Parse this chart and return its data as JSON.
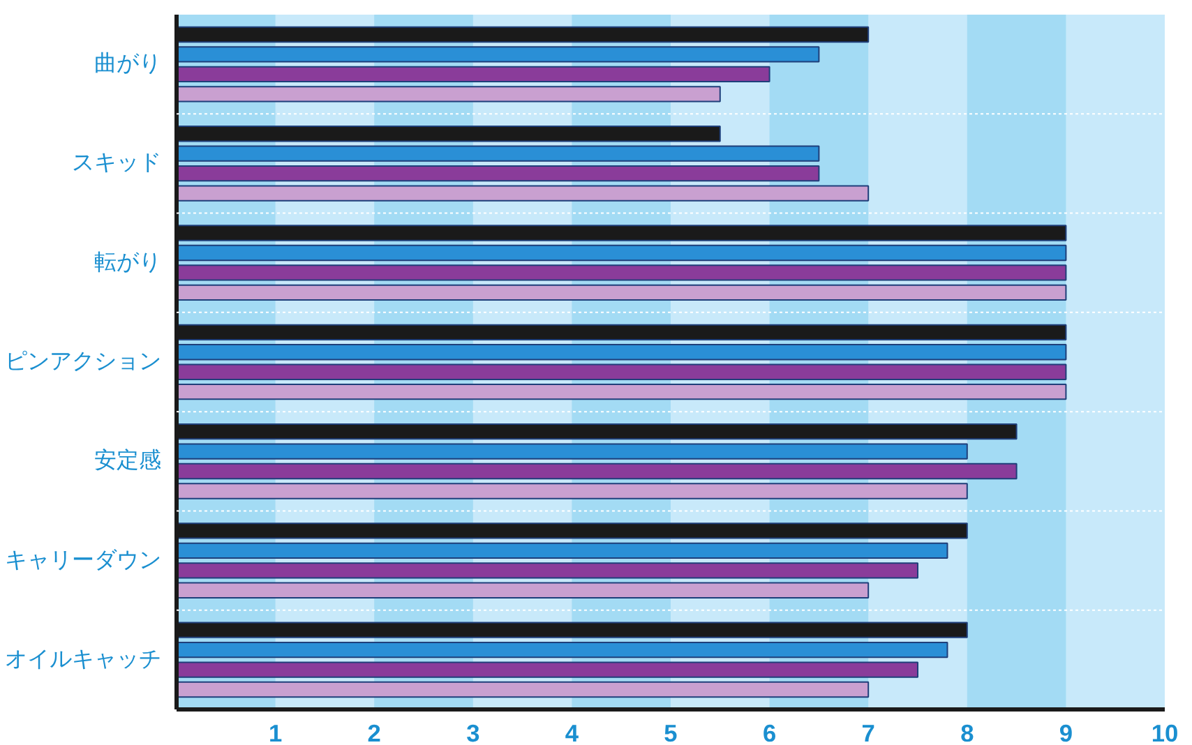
{
  "chart_data": {
    "type": "bar",
    "orientation": "horizontal",
    "categories": [
      "曲がり",
      "スキッド",
      "転がり",
      "ピンアクション",
      "安定感",
      "キャリーダウン",
      "オイルキャッチ"
    ],
    "series": [
      {
        "color": "#1a1a1a",
        "values": [
          7,
          5.5,
          9,
          9,
          8.5,
          8,
          8
        ]
      },
      {
        "color": "#2a8fd6",
        "values": [
          6.5,
          6.5,
          9,
          9,
          8,
          7.8,
          7.8
        ]
      },
      {
        "color": "#8a3c9a",
        "values": [
          6,
          6.5,
          9,
          9,
          8.5,
          7.5,
          7.5
        ]
      },
      {
        "color": "#c9a0d0",
        "values": [
          5.5,
          7,
          9,
          9,
          8,
          7,
          7
        ]
      }
    ],
    "xlim": [
      0,
      10
    ],
    "xticks": [
      1,
      2,
      3,
      4,
      5,
      6,
      7,
      8,
      9,
      10
    ],
    "bands": [
      {
        "axis": "x",
        "from": 0,
        "to": 1,
        "color": "#a3dbf4"
      },
      {
        "axis": "x",
        "from": 2,
        "to": 3,
        "color": "#a3dbf4"
      },
      {
        "axis": "x",
        "from": 4,
        "to": 5,
        "color": "#a3dbf4"
      },
      {
        "axis": "x",
        "from": 6,
        "to": 7,
        "color": "#a3dbf4"
      },
      {
        "axis": "x",
        "from": 8,
        "to": 9,
        "color": "#a3dbf4"
      }
    ],
    "grid": false
  }
}
